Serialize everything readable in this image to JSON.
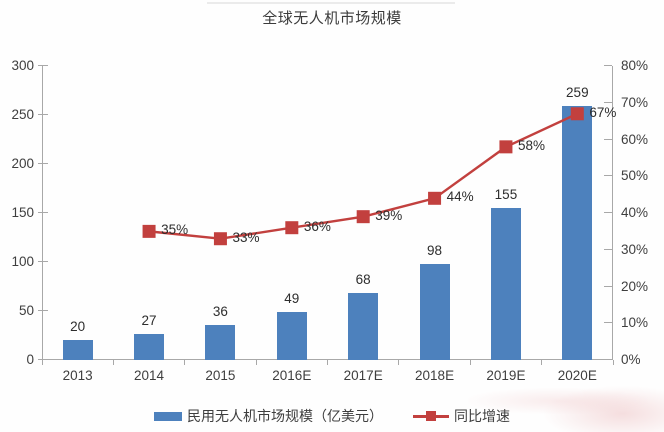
{
  "colors": {
    "bar": "#4d81bd",
    "line": "#c2403e",
    "axis": "#a8a8a8",
    "text": "#3e3e3e",
    "label": "#2d2d2d",
    "title": "#3c3c3c"
  },
  "chart_data": {
    "type": "bar+line",
    "title": "全球无人机市场规模",
    "categories": [
      "2013",
      "2014",
      "2015",
      "2016E",
      "2017E",
      "2018E",
      "2019E",
      "2020E"
    ],
    "series": [
      {
        "name": "民用无人机市场规模（亿美元）",
        "type": "bar",
        "axis": "left",
        "values": [
          20,
          27,
          36,
          49,
          68,
          98,
          155,
          259
        ]
      },
      {
        "name": "同比增速",
        "type": "line",
        "axis": "right",
        "unit": "%",
        "values": [
          null,
          35,
          33,
          36,
          39,
          44,
          58,
          67
        ],
        "point_labels": [
          "",
          "35%",
          "33%",
          "36%",
          "39%",
          "44%",
          "58%",
          "67%"
        ]
      }
    ],
    "left_axis": {
      "min": 0,
      "max": 300,
      "step": 50,
      "tick_labels": [
        "0",
        "50",
        "100",
        "150",
        "200",
        "250",
        "300"
      ]
    },
    "right_axis": {
      "min": 0,
      "max": 80,
      "step": 10,
      "tick_labels": [
        "0%",
        "10%",
        "20%",
        "30%",
        "40%",
        "50%",
        "60%",
        "70%",
        "80%"
      ]
    },
    "grid": false,
    "legend_position": "bottom"
  }
}
